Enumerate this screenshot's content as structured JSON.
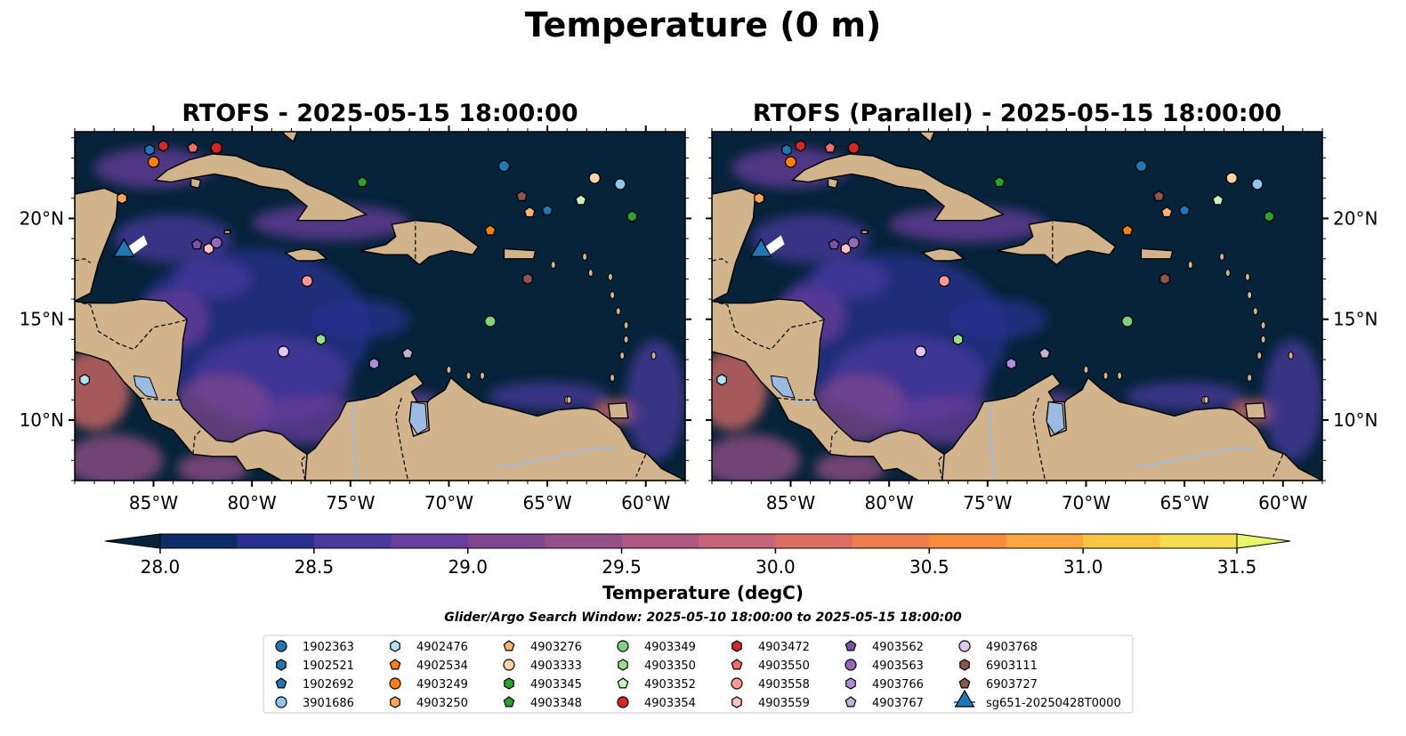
{
  "title": "Temperature (0 m)",
  "panels": [
    {
      "title": "RTOFS - 2025-05-15 18:00:00"
    },
    {
      "title": "RTOFS (Parallel) - 2025-05-15 18:00:00"
    }
  ],
  "map": {
    "lon_range": [
      -89,
      -58
    ],
    "lat_range": [
      7,
      24.3
    ],
    "lon_ticks": [
      {
        "v": -85,
        "label": "85°W"
      },
      {
        "v": -80,
        "label": "80°W"
      },
      {
        "v": -75,
        "label": "75°W"
      },
      {
        "v": -70,
        "label": "70°W"
      },
      {
        "v": -65,
        "label": "65°W"
      },
      {
        "v": -60,
        "label": "60°W"
      }
    ],
    "lat_ticks": [
      {
        "v": 20,
        "label": "20°N"
      },
      {
        "v": 15,
        "label": "15°N"
      },
      {
        "v": 10,
        "label": "10°N"
      }
    ],
    "ocean_color": "#06233a",
    "land_color": "#d2b48c",
    "lake_color": "#9bbbe5"
  },
  "colorbar": {
    "label": "Temperature (degC)",
    "min": 28.0,
    "max": 31.5,
    "step": 0.25,
    "ticks": [
      "28.0",
      "28.5",
      "29.0",
      "29.5",
      "30.0",
      "30.5",
      "31.0",
      "31.5"
    ],
    "colors": [
      "#06233a",
      "#0e2d68",
      "#2a3090",
      "#4a3a9e",
      "#683e9c",
      "#7f4690",
      "#965088",
      "#ad5a80",
      "#c4637a",
      "#dc6e66",
      "#ef7e4e",
      "#f88c3c",
      "#f9a63e",
      "#f8c644",
      "#f3dd52",
      "#e6f866"
    ]
  },
  "search_window": "Glider/Argo Search Window: 2025-05-10 18:00:00 to 2025-05-15 18:00:00",
  "floats": [
    {
      "id": "1902363",
      "marker": "circle",
      "color": "#1f77b4",
      "lon": -67.2,
      "lat": 22.6
    },
    {
      "id": "1902521",
      "marker": "hexagon",
      "color": "#1f77b4",
      "lon": -85.2,
      "lat": 23.4
    },
    {
      "id": "1902692",
      "marker": "pentagon",
      "color": "#1f77b4",
      "lon": -65.0,
      "lat": 20.4
    },
    {
      "id": "3901686",
      "marker": "circle",
      "color": "#8ec6ec",
      "lon": -61.3,
      "lat": 21.7
    },
    {
      "id": "4902476",
      "marker": "hexagon",
      "color": "#aee2f5",
      "lon": -88.5,
      "lat": 12.0
    },
    {
      "id": "4902534",
      "marker": "pentagon",
      "color": "#ff7f0e",
      "lon": -67.9,
      "lat": 19.4
    },
    {
      "id": "4903249",
      "marker": "circle",
      "color": "#ff7f0e",
      "lon": -85.0,
      "lat": 22.8
    },
    {
      "id": "4903250",
      "marker": "hexagon",
      "color": "#ffa55a",
      "lon": -86.6,
      "lat": 21.0
    },
    {
      "id": "4903276",
      "marker": "pentagon",
      "color": "#ffb56e",
      "lon": -65.9,
      "lat": 20.3
    },
    {
      "id": "4903333",
      "marker": "circle",
      "color": "#ffd2a8",
      "lon": -62.6,
      "lat": 22.0
    },
    {
      "id": "4903345",
      "marker": "hexagon",
      "color": "#2ca02c",
      "lon": -60.7,
      "lat": 20.1
    },
    {
      "id": "4903348",
      "marker": "pentagon",
      "color": "#2ca02c",
      "lon": -74.4,
      "lat": 21.8
    },
    {
      "id": "4903349",
      "marker": "circle",
      "color": "#7ed37e",
      "lon": -67.9,
      "lat": 14.9
    },
    {
      "id": "4903350",
      "marker": "hexagon",
      "color": "#98df8a",
      "lon": -76.5,
      "lat": 14.0
    },
    {
      "id": "4903352",
      "marker": "pentagon",
      "color": "#c7f2b8",
      "lon": -63.3,
      "lat": 20.9
    },
    {
      "id": "4903354",
      "marker": "circle",
      "color": "#d62728",
      "lon": -81.8,
      "lat": 23.5
    },
    {
      "id": "4903472",
      "marker": "hexagon",
      "color": "#d62728",
      "lon": -84.5,
      "lat": 23.6
    },
    {
      "id": "4903550",
      "marker": "pentagon",
      "color": "#f06e6e",
      "lon": -83.0,
      "lat": 23.5
    },
    {
      "id": "4903558",
      "marker": "circle",
      "color": "#ff9896",
      "lon": -77.2,
      "lat": 16.9
    },
    {
      "id": "4903559",
      "marker": "hexagon",
      "color": "#ffc2bd",
      "lon": -82.2,
      "lat": 18.5
    },
    {
      "id": "4903562",
      "marker": "pentagon",
      "color": "#7b52ab",
      "lon": -82.8,
      "lat": 18.7
    },
    {
      "id": "4903563",
      "marker": "circle",
      "color": "#9467bd",
      "lon": -81.8,
      "lat": 18.8
    },
    {
      "id": "4903766",
      "marker": "hexagon",
      "color": "#b08be0",
      "lon": -73.8,
      "lat": 12.8
    },
    {
      "id": "4903767",
      "marker": "pentagon",
      "color": "#c5b0d5",
      "lon": -72.1,
      "lat": 13.3
    },
    {
      "id": "4903768",
      "marker": "circle",
      "color": "#e1c6f0",
      "lon": -78.4,
      "lat": 13.4
    },
    {
      "id": "6903111",
      "marker": "hexagon",
      "color": "#8c564b",
      "lon": -66.0,
      "lat": 17.0
    },
    {
      "id": "6903727",
      "marker": "pentagon",
      "color": "#8c564b",
      "lon": -66.3,
      "lat": 21.1
    }
  ],
  "glider": {
    "id": "sg651-20250428T0000",
    "marker": "triangle",
    "color": "#1f77b4",
    "lon": -86.5,
    "lat": 18.4
  },
  "legend_order": [
    "1902363",
    "1902521",
    "1902692",
    "3901686",
    "4902476",
    "4902534",
    "4903249",
    "4903250",
    "4903276",
    "4903333",
    "4903345",
    "4903348",
    "4903349",
    "4903350",
    "4903352",
    "4903354",
    "4903472",
    "4903550",
    "4903558",
    "4903559",
    "4903562",
    "4903563",
    "4903766",
    "4903767",
    "4903768",
    "6903111",
    "6903727",
    "sg651-20250428T0000"
  ]
}
